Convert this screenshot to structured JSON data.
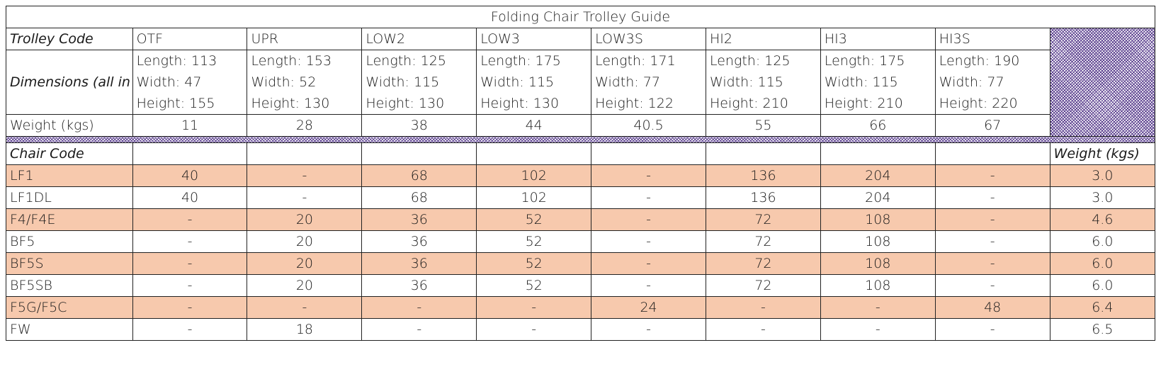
{
  "title": "Folding Chair Trolley Guide",
  "trolley_code_label": "Trolley Code",
  "dimensions_label": "Dimensions (all in cm)",
  "weight_label": "Weight (kgs)",
  "chair_code_label": "Chair Code",
  "chair_weight_label": "Weight (kgs)",
  "trolleys": [
    {
      "code": "OTF",
      "length": "Length: 113",
      "width": "Width: 47",
      "height": "Height: 155",
      "weight": "11"
    },
    {
      "code": "UPR",
      "length": "Length: 153",
      "width": "Width: 52",
      "height": "Height: 130",
      "weight": "28"
    },
    {
      "code": "LOW2",
      "length": "Length: 125",
      "width": "Width: 115",
      "height": "Height: 130",
      "weight": "38"
    },
    {
      "code": "LOW3",
      "length": "Length: 175",
      "width": "Width: 115",
      "height": "Height: 130",
      "weight": "44"
    },
    {
      "code": "LOW3S",
      "length": "Length: 171",
      "width": "Width: 77",
      "height": "Height: 122",
      "weight": "40.5"
    },
    {
      "code": "HI2",
      "length": "Length: 125",
      "width": "Width: 115",
      "height": "Height: 210",
      "weight": "55"
    },
    {
      "code": "HI3",
      "length": "Length: 175",
      "width": "Width: 115",
      "height": "Height: 210",
      "weight": "66"
    },
    {
      "code": "HI3S",
      "length": "Length: 190",
      "width": "Width: 77",
      "height": "Height: 220",
      "weight": "67"
    }
  ],
  "chairs": [
    {
      "code": "LF1",
      "values": [
        "40",
        "-",
        "68",
        "102",
        "-",
        "136",
        "204",
        "-"
      ],
      "weight": "3.0",
      "shaded": true
    },
    {
      "code": "LF1DL",
      "values": [
        "40",
        "-",
        "68",
        "102",
        "-",
        "136",
        "204",
        "-"
      ],
      "weight": "3.0",
      "shaded": false
    },
    {
      "code": "F4/F4E",
      "values": [
        "-",
        "20",
        "36",
        "52",
        "-",
        "72",
        "108",
        "-"
      ],
      "weight": "4.6",
      "shaded": true
    },
    {
      "code": "BF5",
      "values": [
        "-",
        "20",
        "36",
        "52",
        "-",
        "72",
        "108",
        "-"
      ],
      "weight": "6.0",
      "shaded": false
    },
    {
      "code": "BF5S",
      "values": [
        "-",
        "20",
        "36",
        "52",
        "-",
        "72",
        "108",
        "-"
      ],
      "weight": "6.0",
      "shaded": true
    },
    {
      "code": "BF5SB",
      "values": [
        "-",
        "20",
        "36",
        "52",
        "-",
        "72",
        "108",
        "-"
      ],
      "weight": "6.0",
      "shaded": false
    },
    {
      "code": "F5G/F5C",
      "values": [
        "-",
        "-",
        "-",
        "-",
        "24",
        "-",
        "-",
        "48"
      ],
      "weight": "6.4",
      "shaded": true
    },
    {
      "code": "FW",
      "values": [
        "-",
        "18",
        "-",
        "-",
        "-",
        "-",
        "-",
        "-"
      ],
      "weight": "6.5",
      "shaded": false
    }
  ],
  "colors": {
    "row_shade": "#f7c9ad",
    "hatch": "#5a3e8e"
  }
}
